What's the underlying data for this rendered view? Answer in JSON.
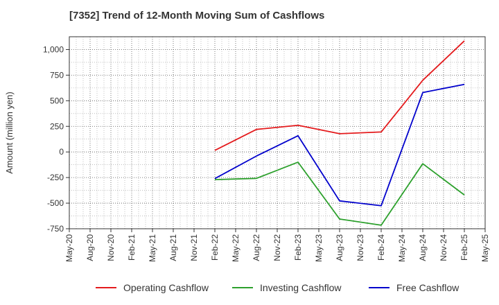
{
  "chart_data": {
    "type": "line",
    "title": "[7352]  Trend of 12-Month Moving Sum of Cashflows",
    "ylabel": "Amount (million yen)",
    "xlabel": "",
    "ylim": [
      -750,
      1125
    ],
    "yticks": [
      -750,
      -500,
      -250,
      0,
      250,
      500,
      750,
      1000
    ],
    "ytick_labels": [
      "-750",
      "-500",
      "-250",
      "0",
      "250",
      "500",
      "750",
      "1,000"
    ],
    "categories": [
      "May-20",
      "Aug-20",
      "Nov-20",
      "Feb-21",
      "May-21",
      "Aug-21",
      "Nov-21",
      "Feb-22",
      "May-22",
      "Aug-22",
      "Nov-22",
      "Feb-23",
      "May-23",
      "Aug-23",
      "Nov-23",
      "Feb-24",
      "May-24",
      "Aug-24",
      "Nov-24",
      "Feb-25",
      "May-25"
    ],
    "grid": true,
    "legend_position": "bottom",
    "series": [
      {
        "name": "Operating Cashflow",
        "color": "#e41a1c",
        "points": [
          [
            "Feb-22",
            15
          ],
          [
            "Aug-22",
            220
          ],
          [
            "Feb-23",
            260
          ],
          [
            "Aug-23",
            178
          ],
          [
            "Feb-24",
            195
          ],
          [
            "Aug-24",
            700
          ],
          [
            "Feb-25",
            1085
          ]
        ]
      },
      {
        "name": "Investing Cashflow",
        "color": "#2ca02c",
        "points": [
          [
            "Feb-22",
            -270
          ],
          [
            "Aug-22",
            -258
          ],
          [
            "Feb-23",
            -100
          ],
          [
            "Aug-23",
            -655
          ],
          [
            "Feb-24",
            -715
          ],
          [
            "Aug-24",
            -115
          ],
          [
            "Feb-25",
            -420
          ]
        ]
      },
      {
        "name": "Free Cashflow",
        "color": "#0000cc",
        "points": [
          [
            "Feb-22",
            -260
          ],
          [
            "Aug-22",
            -40
          ],
          [
            "Feb-23",
            158
          ],
          [
            "Aug-23",
            -478
          ],
          [
            "Feb-24",
            -525
          ],
          [
            "Aug-24",
            580
          ],
          [
            "Feb-25",
            660
          ]
        ]
      }
    ]
  }
}
